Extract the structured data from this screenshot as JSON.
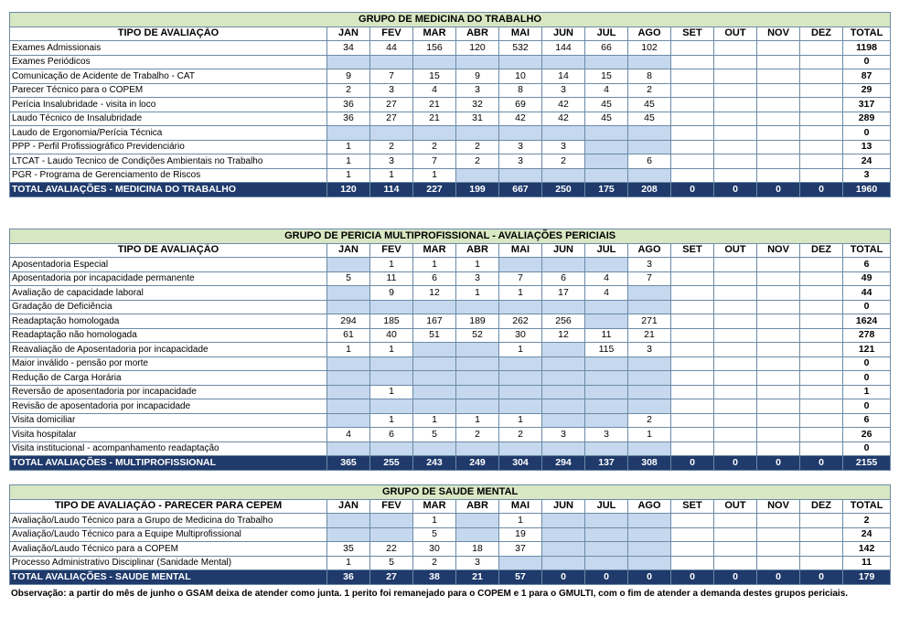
{
  "months": [
    "JAN",
    "FEV",
    "MAR",
    "ABR",
    "MAI",
    "JUN",
    "JUL",
    "AGO",
    "SET",
    "OUT",
    "NOV",
    "DEZ"
  ],
  "total_label": "TOTAL",
  "groups": [
    {
      "title": "GRUPO DE MEDICINA DO TRABALHO",
      "col_header": "TIPO DE AVALIAÇÃO",
      "rows": [
        {
          "name": "Exames Admissionais",
          "values": [
            "34",
            "44",
            "156",
            "120",
            "532",
            "144",
            "66",
            "102",
            "",
            "",
            "",
            ""
          ],
          "total": "1198"
        },
        {
          "name": "Exames Periódicos",
          "values": [
            "",
            "",
            "",
            "",
            "",
            "",
            "",
            "",
            "",
            "",
            "",
            ""
          ],
          "total": "0"
        },
        {
          "name": "Comunicação de Acidente de Trabalho - CAT",
          "values": [
            "9",
            "7",
            "15",
            "9",
            "10",
            "14",
            "15",
            "8",
            "",
            "",
            "",
            ""
          ],
          "total": "87"
        },
        {
          "name": "Parecer Técnico para o COPEM",
          "values": [
            "2",
            "3",
            "4",
            "3",
            "8",
            "3",
            "4",
            "2",
            "",
            "",
            "",
            ""
          ],
          "total": "29"
        },
        {
          "name": "Perícia Insalubridade - visita in loco",
          "values": [
            "36",
            "27",
            "21",
            "32",
            "69",
            "42",
            "45",
            "45",
            "",
            "",
            "",
            ""
          ],
          "total": "317"
        },
        {
          "name": "Laudo Técnico de Insalubridade",
          "values": [
            "36",
            "27",
            "21",
            "31",
            "42",
            "42",
            "45",
            "45",
            "",
            "",
            "",
            ""
          ],
          "total": "289"
        },
        {
          "name": "Laudo de Ergonomia/Perícia Técnica",
          "values": [
            "",
            "",
            "",
            "",
            "",
            "",
            "",
            "",
            "",
            "",
            "",
            ""
          ],
          "total": "0"
        },
        {
          "name": "PPP - Perfil Profissiográfico Previdenciário",
          "values": [
            "1",
            "2",
            "2",
            "2",
            "3",
            "3",
            "",
            "",
            "",
            "",
            "",
            ""
          ],
          "total": "13"
        },
        {
          "name": "LTCAT - Laudo Tecnico de Condições Ambientais no Trabalho",
          "values": [
            "1",
            "3",
            "7",
            "2",
            "3",
            "2",
            "",
            "6",
            "",
            "",
            "",
            ""
          ],
          "total": "24"
        },
        {
          "name": "PGR - Programa de Gerenciamento de Riscos",
          "values": [
            "1",
            "1",
            "1",
            "",
            "",
            "",
            "",
            "",
            "",
            "",
            "",
            ""
          ],
          "total": "3"
        }
      ],
      "total_row": {
        "name": "TOTAL AVALIAÇÕES - MEDICINA DO TRABALHO",
        "values": [
          "120",
          "114",
          "227",
          "199",
          "667",
          "250",
          "175",
          "208",
          "0",
          "0",
          "0",
          "0"
        ],
        "total": "1960"
      }
    },
    {
      "title": "GRUPO DE PERICIA MULTIPROFISSIONAL - AVALIAÇÕES PERICIAIS",
      "col_header": "TIPO DE AVALIAÇÃO",
      "rows": [
        {
          "name": "Aposentadoria Especial",
          "values": [
            "",
            "1",
            "1",
            "1",
            "",
            "",
            "",
            "3",
            "",
            "",
            "",
            ""
          ],
          "total": "6"
        },
        {
          "name": "Aposentadoria por incapacidade permanente",
          "values": [
            "5",
            "11",
            "6",
            "3",
            "7",
            "6",
            "4",
            "7",
            "",
            "",
            "",
            ""
          ],
          "total": "49"
        },
        {
          "name": "Avaliação de capacidade laboral",
          "values": [
            "",
            "9",
            "12",
            "1",
            "1",
            "17",
            "4",
            "",
            "",
            "",
            "",
            ""
          ],
          "total": "44"
        },
        {
          "name": "Gradação de Deficiência",
          "values": [
            "",
            "",
            "",
            "",
            "",
            "",
            "",
            "",
            "",
            "",
            "",
            ""
          ],
          "total": "0"
        },
        {
          "name": "Readaptação homologada",
          "values": [
            "294",
            "185",
            "167",
            "189",
            "262",
            "256",
            "",
            "271",
            "",
            "",
            "",
            ""
          ],
          "total": "1624"
        },
        {
          "name": "Readaptação não homologada",
          "values": [
            "61",
            "40",
            "51",
            "52",
            "30",
            "12",
            "11",
            "21",
            "",
            "",
            "",
            ""
          ],
          "total": "278"
        },
        {
          "name": "Reavaliação de Aposentadoria por incapacidade",
          "values": [
            "1",
            "1",
            "",
            "",
            "1",
            "",
            "115",
            "3",
            "",
            "",
            "",
            ""
          ],
          "total": "121"
        },
        {
          "name": "Maior inválido - pensão por morte",
          "values": [
            "",
            "",
            "",
            "",
            "",
            "",
            "",
            "",
            "",
            "",
            "",
            ""
          ],
          "total": "0"
        },
        {
          "name": "Redução de Carga Horária",
          "values": [
            "",
            "",
            "",
            "",
            "",
            "",
            "",
            "",
            "",
            "",
            "",
            ""
          ],
          "total": "0"
        },
        {
          "name": "Reversão de aposentadoria por incapacidade",
          "values": [
            "",
            "1",
            "",
            "",
            "",
            "",
            "",
            "",
            "",
            "",
            "",
            ""
          ],
          "total": "1"
        },
        {
          "name": "Revisão de aposentadoria por incapacidade",
          "values": [
            "",
            "",
            "",
            "",
            "",
            "",
            "",
            "",
            "",
            "",
            "",
            ""
          ],
          "total": "0"
        },
        {
          "name": "Visita domiciliar",
          "values": [
            "",
            "1",
            "1",
            "1",
            "1",
            "",
            "",
            "2",
            "",
            "",
            "",
            ""
          ],
          "total": "6"
        },
        {
          "name": "Visita hospitalar",
          "values": [
            "4",
            "6",
            "5",
            "2",
            "2",
            "3",
            "3",
            "1",
            "",
            "",
            "",
            ""
          ],
          "total": "26"
        },
        {
          "name": "Visita institucional - acompanhamento readaptação",
          "values": [
            "",
            "",
            "",
            "",
            "",
            "",
            "",
            "",
            "",
            "",
            "",
            ""
          ],
          "total": "0"
        }
      ],
      "total_row": {
        "name": "TOTAL AVALIAÇÕES - MULTIPROFISSIONAL",
        "values": [
          "365",
          "255",
          "243",
          "249",
          "304",
          "294",
          "137",
          "308",
          "0",
          "0",
          "0",
          "0"
        ],
        "total": "2155"
      }
    },
    {
      "title": "GRUPO DE SAUDE MENTAL",
      "col_header": "TIPO DE AVALIAÇÃO - PARECER PARA CEPEM",
      "rows": [
        {
          "name": "Avaliação/Laudo Técnico para a Grupo de Medicina do Trabalho",
          "values": [
            "",
            "",
            "1",
            "",
            "1",
            "",
            "",
            "",
            "",
            "",
            "",
            ""
          ],
          "total": "2"
        },
        {
          "name": "Avaliação/Laudo Técnico para a Equipe Multiprofissional",
          "values": [
            "",
            "",
            "5",
            "",
            "19",
            "",
            "",
            "",
            "",
            "",
            "",
            ""
          ],
          "total": "24"
        },
        {
          "name": "Avaliação/Laudo Técnico para a COPEM",
          "values": [
            "35",
            "22",
            "30",
            "18",
            "37",
            "",
            "",
            "",
            "",
            "",
            "",
            ""
          ],
          "total": "142"
        },
        {
          "name": "Processo Administrativo Disciplinar (Sanidade Mental)",
          "values": [
            "1",
            "5",
            "2",
            "3",
            "",
            "",
            "",
            "",
            "",
            "",
            "",
            ""
          ],
          "total": "11"
        }
      ],
      "total_row": {
        "name": "TOTAL AVALIAÇÕES - SAUDE MENTAL",
        "values": [
          "36",
          "27",
          "38",
          "21",
          "57",
          "0",
          "0",
          "0",
          "0",
          "0",
          "0",
          "0"
        ],
        "total": "179"
      }
    }
  ],
  "observation": "Observação: a partir do mês de junho o GSAM deixa de atender como junta. 1 perito foi remanejado para o COPEM e 1 para o GMULTI, com o fim de atender a demanda destes grupos periciais."
}
